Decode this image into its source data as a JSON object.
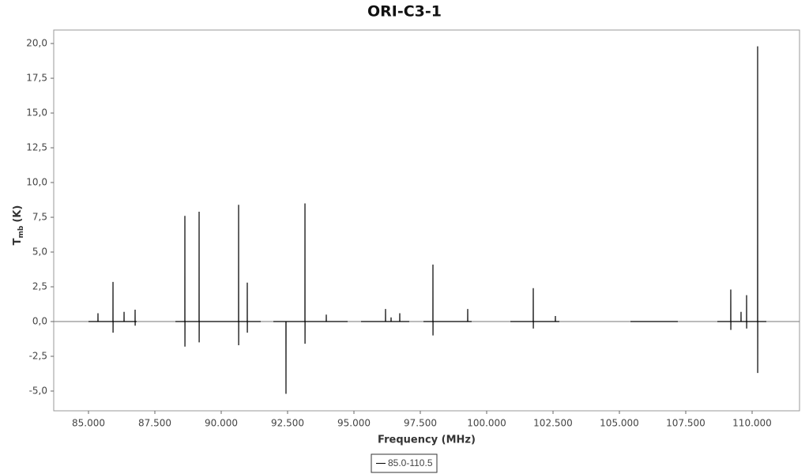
{
  "chart_data": {
    "type": "line",
    "title": "ORI-C3-1",
    "xlabel": "Frequency (MHz)",
    "ylabel": {
      "main": "T",
      "subscript": "mb",
      "unit": "(K)"
    },
    "xlim": [
      83690,
      111786
    ],
    "ylim": [
      -6.42,
      20.97
    ],
    "xticks": [
      {
        "value": 85000,
        "label": "85.000"
      },
      {
        "value": 87500,
        "label": "87.500"
      },
      {
        "value": 90000,
        "label": "90.000"
      },
      {
        "value": 92500,
        "label": "92.500"
      },
      {
        "value": 95000,
        "label": "95.000"
      },
      {
        "value": 97500,
        "label": "97.500"
      },
      {
        "value": 100000,
        "label": "100.000"
      },
      {
        "value": 102500,
        "label": "102.500"
      },
      {
        "value": 105000,
        "label": "105.000"
      },
      {
        "value": 107500,
        "label": "107.500"
      },
      {
        "value": 110000,
        "label": "110.000"
      }
    ],
    "yticks": [
      {
        "value": -5,
        "label": "-5,0"
      },
      {
        "value": -2.5,
        "label": "-2,5"
      },
      {
        "value": 0,
        "label": "0,0"
      },
      {
        "value": 2.5,
        "label": "2,5"
      },
      {
        "value": 5,
        "label": "5,0"
      },
      {
        "value": 7.5,
        "label": "7,5"
      },
      {
        "value": 10,
        "label": "10,0"
      },
      {
        "value": 12.5,
        "label": "12,5"
      },
      {
        "value": 15,
        "label": "15,0"
      },
      {
        "value": 17.5,
        "label": "17,5"
      },
      {
        "value": 20,
        "label": "20,0"
      }
    ],
    "zeroline": true,
    "x": [
      85000,
      85355,
      85357,
      85359,
      85921,
      85923,
      85925,
      85927,
      86338,
      86340,
      86342,
      86754,
      86756,
      86758,
      86760,
      86815,
      null,
      88274,
      88629,
      88631,
      88633,
      88635,
      89165,
      89167,
      89169,
      89171,
      90653,
      90655,
      90657,
      90659,
      90980,
      90982,
      90984,
      90986,
      91488,
      null,
      91964,
      92438,
      92440,
      92442,
      93153,
      93155,
      93157,
      93159,
      93956,
      93958,
      93960,
      94762,
      null,
      95268,
      96188,
      96190,
      96192,
      96397,
      96399,
      96401,
      96724,
      96726,
      96728,
      97083,
      null,
      97619,
      97974,
      97976,
      97978,
      97980,
      99284,
      99286,
      99288,
      99435,
      null,
      100893,
      101754,
      101756,
      101758,
      101760,
      102587,
      102589,
      102591,
      102738,
      null,
      105417,
      107202,
      null,
      108690,
      109194,
      109196,
      109198,
      109200,
      109581,
      109583,
      109585,
      109790,
      109792,
      109794,
      109796,
      110206,
      110208,
      110210,
      110212,
      110535
    ],
    "series": [
      {
        "name": "85.0-110.5",
        "color": "#000000",
        "values": [
          0,
          0,
          0.6,
          0,
          0,
          2.85,
          -0.8,
          0,
          0,
          0.7,
          0,
          0,
          0.85,
          -0.3,
          0,
          0,
          null,
          0,
          0,
          7.6,
          -1.8,
          0,
          0,
          7.9,
          -1.5,
          0,
          0,
          8.4,
          -1.7,
          0,
          0,
          2.8,
          -0.8,
          0,
          0,
          null,
          0,
          0,
          -5.2,
          0,
          0,
          8.5,
          -1.6,
          0,
          0,
          0.5,
          0,
          0,
          null,
          0,
          0,
          0.9,
          0,
          0,
          0.3,
          0,
          0,
          0.6,
          0,
          0,
          null,
          0,
          0,
          4.1,
          -1.0,
          0,
          0,
          0.9,
          0,
          0,
          null,
          0,
          0,
          2.4,
          -0.5,
          0,
          0,
          0.4,
          0,
          0,
          null,
          0,
          0,
          null,
          0,
          0,
          2.3,
          -0.6,
          0,
          0,
          0.7,
          0,
          0,
          1.9,
          -0.5,
          0,
          0,
          19.8,
          -3.7,
          0,
          0
        ]
      }
    ]
  }
}
